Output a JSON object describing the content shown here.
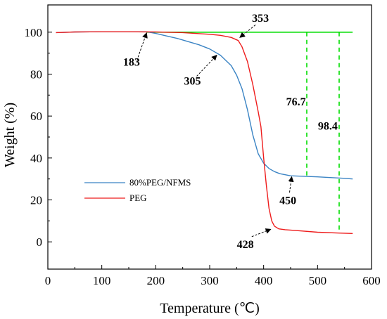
{
  "chart_data": {
    "type": "line",
    "xlabel": "Temperature (℃)",
    "ylabel": "Weight (%)",
    "xlim": [
      0,
      600
    ],
    "ylim": [
      -13,
      113
    ],
    "xticks": [
      0,
      100,
      200,
      300,
      400,
      500,
      600
    ],
    "yticks": [
      0,
      20,
      40,
      60,
      80,
      100
    ],
    "grid": false,
    "legend_placement": "lower-left",
    "series": [
      {
        "name": "80%PEG/NFMS",
        "color": "#3b84c4",
        "x": [
          15,
          50,
          100,
          150,
          183,
          200,
          220,
          240,
          260,
          280,
          300,
          320,
          340,
          350,
          360,
          370,
          380,
          390,
          400,
          410,
          420,
          430,
          450,
          500,
          550,
          565
        ],
        "y": [
          99.8,
          100.1,
          100.2,
          100.2,
          100.2,
          99.4,
          98.2,
          97.0,
          95.5,
          94.0,
          92.0,
          89.0,
          84.0,
          79.5,
          73.0,
          63.0,
          51.0,
          42.0,
          37.5,
          35.0,
          33.5,
          32.5,
          31.5,
          31.0,
          30.3,
          30.0
        ]
      },
      {
        "name": "PEG",
        "color": "#ee1c1c",
        "x": [
          15,
          50,
          100,
          150,
          200,
          250,
          300,
          320,
          340,
          353,
          360,
          370,
          380,
          390,
          395,
          400,
          405,
          410,
          415,
          420,
          428,
          440,
          460,
          500,
          540,
          565
        ],
        "y": [
          99.8,
          100.1,
          100.2,
          100.2,
          100.1,
          99.8,
          99.0,
          98.5,
          97.5,
          96.0,
          93.0,
          86.0,
          75.0,
          62.0,
          55.0,
          40.0,
          27.0,
          16.0,
          10.0,
          7.5,
          6.2,
          5.8,
          5.4,
          4.6,
          4.2,
          4.0
        ]
      }
    ],
    "reference_lines": [
      {
        "type": "horizontal",
        "y": 100,
        "x_from": 183,
        "x_to": 565,
        "color": "#00dd00",
        "style": "solid"
      },
      {
        "type": "vertical",
        "x": 480,
        "y_from": 100,
        "y_to": 31,
        "color": "#00dd00",
        "style": "dashed"
      },
      {
        "type": "vertical",
        "x": 540,
        "y_from": 100,
        "y_to": 4.5,
        "color": "#00dd00",
        "style": "dashed"
      }
    ],
    "annotations": [
      {
        "text": "183",
        "arrow_from": [
          165,
          86.5
        ],
        "arrow_to": [
          183,
          99.6
        ],
        "text_at": [
          155,
          84
        ]
      },
      {
        "text": "353",
        "arrow_from": [
          385,
          103.5
        ],
        "arrow_to": [
          356,
          97.5
        ],
        "text_at": [
          394,
          105
        ]
      },
      {
        "text": "305",
        "arrow_from": [
          276,
          79
        ],
        "arrow_to": [
          313,
          89
        ],
        "text_at": [
          268,
          75
        ]
      },
      {
        "text": "450",
        "arrow_from": [
          448,
          23.5
        ],
        "arrow_to": [
          452,
          31
        ],
        "text_at": [
          445,
          18
        ]
      },
      {
        "text": "428",
        "arrow_from": [
          378,
          2.5
        ],
        "arrow_to": [
          413,
          6
        ],
        "text_at": [
          366,
          -3
        ]
      },
      {
        "text": "76.7",
        "text_at": [
          460,
          65
        ]
      },
      {
        "text": "98.4",
        "text_at": [
          519,
          53.5
        ]
      }
    ]
  }
}
